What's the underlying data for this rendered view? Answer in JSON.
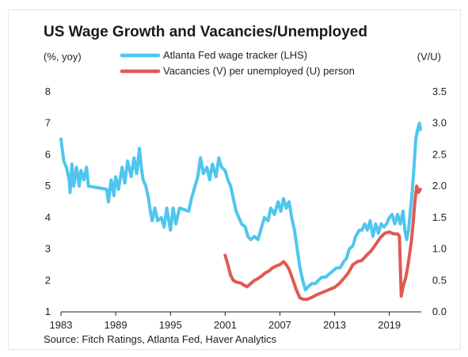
{
  "colors": {
    "wage": "#4fc6ee",
    "vacancy": "#e05a52",
    "axis": "#222222"
  },
  "chart_data": {
    "type": "line",
    "title": "US Wage Growth and Vacancies/Unemployed",
    "ylabel": "(%, yoy)",
    "y2label": "(V/U)",
    "source": "Source: Fitch Ratings, Atlanta Fed, Haver Analytics",
    "xlim": [
      1983,
      2022.5
    ],
    "ylim": [
      1,
      8
    ],
    "y2lim": [
      0,
      3.5
    ],
    "xticks": [
      "1983",
      "1989",
      "1995",
      "2001",
      "2007",
      "2013",
      "2019"
    ],
    "yticks": [
      "1",
      "2",
      "3",
      "4",
      "5",
      "6",
      "7",
      "8"
    ],
    "y2ticks": [
      "0.0",
      "0.5",
      "1.0",
      "1.5",
      "2.0",
      "2.5",
      "3.0",
      "3.5"
    ],
    "grid": false,
    "legend_position": "top-center",
    "series": [
      {
        "name": "Atlanta Fed wage tracker (LHS)",
        "axis": "left",
        "color": "#4fc6ee",
        "points": [
          [
            1983.0,
            6.5
          ],
          [
            1983.3,
            5.8
          ],
          [
            1983.6,
            5.6
          ],
          [
            1983.9,
            5.2
          ],
          [
            1984.0,
            4.8
          ],
          [
            1984.2,
            5.7
          ],
          [
            1984.4,
            5.0
          ],
          [
            1984.7,
            5.6
          ],
          [
            1985.0,
            5.0
          ],
          [
            1985.2,
            5.5
          ],
          [
            1985.5,
            5.2
          ],
          [
            1985.8,
            5.6
          ],
          [
            1986.0,
            5.0
          ],
          [
            1987.0,
            4.95
          ],
          [
            1988.0,
            4.9
          ],
          [
            1988.2,
            4.5
          ],
          [
            1988.5,
            5.2
          ],
          [
            1988.8,
            4.7
          ],
          [
            1989.0,
            5.3
          ],
          [
            1989.3,
            4.9
          ],
          [
            1989.7,
            5.6
          ],
          [
            1990.0,
            5.1
          ],
          [
            1990.3,
            5.8
          ],
          [
            1990.7,
            5.3
          ],
          [
            1991.0,
            5.9
          ],
          [
            1991.3,
            5.4
          ],
          [
            1991.6,
            6.2
          ],
          [
            1991.8,
            5.6
          ],
          [
            1992.0,
            5.2
          ],
          [
            1992.3,
            5.0
          ],
          [
            1992.6,
            4.6
          ],
          [
            1992.8,
            4.2
          ],
          [
            1993.0,
            3.9
          ],
          [
            1993.3,
            4.3
          ],
          [
            1993.6,
            3.9
          ],
          [
            1994.0,
            4.0
          ],
          [
            1994.3,
            3.7
          ],
          [
            1994.6,
            4.3
          ],
          [
            1995.0,
            3.6
          ],
          [
            1995.3,
            4.3
          ],
          [
            1995.6,
            3.8
          ],
          [
            1996.0,
            4.3
          ],
          [
            1997.0,
            4.2
          ],
          [
            1997.3,
            4.6
          ],
          [
            1997.7,
            5.0
          ],
          [
            1998.0,
            5.3
          ],
          [
            1998.3,
            5.9
          ],
          [
            1998.6,
            5.4
          ],
          [
            1999.0,
            5.6
          ],
          [
            1999.3,
            5.2
          ],
          [
            1999.6,
            5.7
          ],
          [
            2000.0,
            5.3
          ],
          [
            2000.3,
            5.9
          ],
          [
            2000.6,
            5.6
          ],
          [
            2001.0,
            5.5
          ],
          [
            2001.3,
            5.2
          ],
          [
            2001.6,
            5.0
          ],
          [
            2001.9,
            4.6
          ],
          [
            2002.2,
            4.2
          ],
          [
            2002.5,
            4.0
          ],
          [
            2002.8,
            3.8
          ],
          [
            2003.2,
            3.7
          ],
          [
            2003.5,
            3.4
          ],
          [
            2003.8,
            3.3
          ],
          [
            2004.2,
            3.4
          ],
          [
            2004.6,
            3.3
          ],
          [
            2005.0,
            3.7
          ],
          [
            2005.3,
            4.0
          ],
          [
            2005.7,
            3.9
          ],
          [
            2006.0,
            4.3
          ],
          [
            2006.4,
            4.1
          ],
          [
            2006.8,
            4.5
          ],
          [
            2007.1,
            4.2
          ],
          [
            2007.4,
            4.6
          ],
          [
            2007.7,
            4.3
          ],
          [
            2008.0,
            4.5
          ],
          [
            2008.3,
            4.0
          ],
          [
            2008.6,
            3.6
          ],
          [
            2008.9,
            3.0
          ],
          [
            2009.2,
            2.4
          ],
          [
            2009.5,
            2.0
          ],
          [
            2009.8,
            1.7
          ],
          [
            2010.1,
            1.8
          ],
          [
            2010.5,
            1.9
          ],
          [
            2010.9,
            1.9
          ],
          [
            2011.2,
            2.0
          ],
          [
            2011.6,
            2.1
          ],
          [
            2012.0,
            2.1
          ],
          [
            2012.4,
            2.2
          ],
          [
            2012.8,
            2.3
          ],
          [
            2013.2,
            2.4
          ],
          [
            2013.6,
            2.4
          ],
          [
            2014.0,
            2.6
          ],
          [
            2014.3,
            2.7
          ],
          [
            2014.6,
            3.0
          ],
          [
            2015.0,
            3.1
          ],
          [
            2015.3,
            3.4
          ],
          [
            2015.7,
            3.6
          ],
          [
            2016.0,
            3.6
          ],
          [
            2016.3,
            3.8
          ],
          [
            2016.6,
            3.6
          ],
          [
            2016.9,
            3.9
          ],
          [
            2017.2,
            3.4
          ],
          [
            2017.5,
            3.8
          ],
          [
            2017.8,
            3.5
          ],
          [
            2018.1,
            3.8
          ],
          [
            2018.4,
            3.7
          ],
          [
            2018.7,
            3.8
          ],
          [
            2019.0,
            4.0
          ],
          [
            2019.3,
            4.1
          ],
          [
            2019.6,
            3.8
          ],
          [
            2019.9,
            4.1
          ],
          [
            2020.2,
            3.8
          ],
          [
            2020.5,
            4.2
          ],
          [
            2020.7,
            3.6
          ],
          [
            2020.9,
            3.3
          ],
          [
            2021.1,
            3.6
          ],
          [
            2021.3,
            4.2
          ],
          [
            2021.5,
            4.8
          ],
          [
            2021.7,
            5.6
          ],
          [
            2021.9,
            6.5
          ],
          [
            2022.1,
            6.8
          ],
          [
            2022.3,
            7.0
          ],
          [
            2022.4,
            6.8
          ]
        ]
      },
      {
        "name": "Vacancies (V) per unemployed (U) person",
        "axis": "right",
        "color": "#e05a52",
        "points": [
          [
            2001.0,
            0.9
          ],
          [
            2001.3,
            0.75
          ],
          [
            2001.6,
            0.58
          ],
          [
            2001.9,
            0.5
          ],
          [
            2002.3,
            0.47
          ],
          [
            2002.7,
            0.46
          ],
          [
            2003.0,
            0.43
          ],
          [
            2003.4,
            0.4
          ],
          [
            2003.8,
            0.45
          ],
          [
            2004.2,
            0.5
          ],
          [
            2004.6,
            0.53
          ],
          [
            2005.0,
            0.57
          ],
          [
            2005.4,
            0.62
          ],
          [
            2005.8,
            0.65
          ],
          [
            2006.2,
            0.7
          ],
          [
            2006.6,
            0.73
          ],
          [
            2007.0,
            0.75
          ],
          [
            2007.4,
            0.8
          ],
          [
            2007.7,
            0.75
          ],
          [
            2008.0,
            0.68
          ],
          [
            2008.4,
            0.52
          ],
          [
            2008.8,
            0.35
          ],
          [
            2009.2,
            0.22
          ],
          [
            2009.6,
            0.2
          ],
          [
            2010.0,
            0.2
          ],
          [
            2010.5,
            0.23
          ],
          [
            2011.0,
            0.27
          ],
          [
            2011.5,
            0.3
          ],
          [
            2012.0,
            0.33
          ],
          [
            2012.5,
            0.36
          ],
          [
            2013.0,
            0.39
          ],
          [
            2013.5,
            0.45
          ],
          [
            2014.0,
            0.53
          ],
          [
            2014.5,
            0.62
          ],
          [
            2015.0,
            0.75
          ],
          [
            2015.5,
            0.8
          ],
          [
            2016.0,
            0.82
          ],
          [
            2016.5,
            0.9
          ],
          [
            2017.0,
            0.97
          ],
          [
            2017.5,
            1.07
          ],
          [
            2018.0,
            1.18
          ],
          [
            2018.5,
            1.25
          ],
          [
            2019.0,
            1.27
          ],
          [
            2019.5,
            1.24
          ],
          [
            2019.9,
            1.24
          ],
          [
            2020.1,
            1.2
          ],
          [
            2020.3,
            0.25
          ],
          [
            2020.5,
            0.4
          ],
          [
            2020.8,
            0.55
          ],
          [
            2021.0,
            0.7
          ],
          [
            2021.2,
            0.9
          ],
          [
            2021.4,
            1.1
          ],
          [
            2021.6,
            1.4
          ],
          [
            2021.8,
            1.75
          ],
          [
            2022.0,
            2.0
          ],
          [
            2022.2,
            1.9
          ],
          [
            2022.4,
            1.95
          ]
        ]
      }
    ]
  }
}
